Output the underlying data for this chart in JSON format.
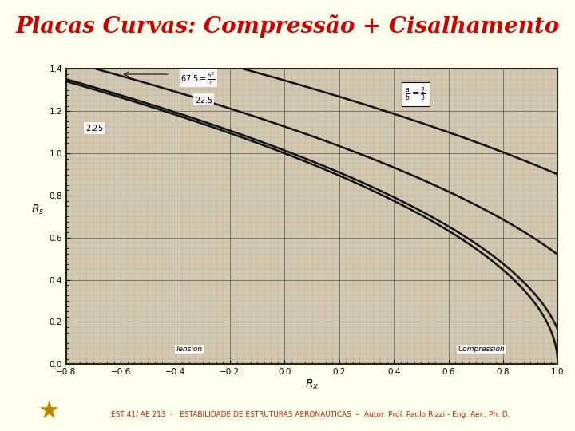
{
  "title": "Placas Curvas: Compressão + Cisalhamento",
  "title_color": "#cc0000",
  "title_fontsize": 20,
  "title_fontstyle": "italic",
  "title_fontweight": "bold",
  "bg_slide": "#ffffee",
  "bg_chart": "#d4c9b0",
  "bar_blue": "#2060a0",
  "footer_text": "EST 41/ AE 213  -   ESTABILIDADE DE ESTRUTURAS AERONÁUTICAS  –  Autor: Prof. Paulo Rizzi - Eng. Aer., Ph. D.",
  "footer_color": "#cc2200",
  "footer_fontsize": 6.5,
  "xlim": [
    -0.8,
    1.0
  ],
  "ylim": [
    0.0,
    1.4
  ],
  "xticks": [
    -0.8,
    -0.6,
    -0.4,
    -0.2,
    0.0,
    0.2,
    0.4,
    0.6,
    0.8,
    1.0
  ],
  "yticks": [
    0.0,
    0.2,
    0.4,
    0.6,
    0.8,
    1.0,
    1.2,
    1.4
  ],
  "curve_color": "#111111",
  "grid_major_color": "#444444",
  "grid_minor_color": "#888888",
  "chart_border_color": "#222222"
}
